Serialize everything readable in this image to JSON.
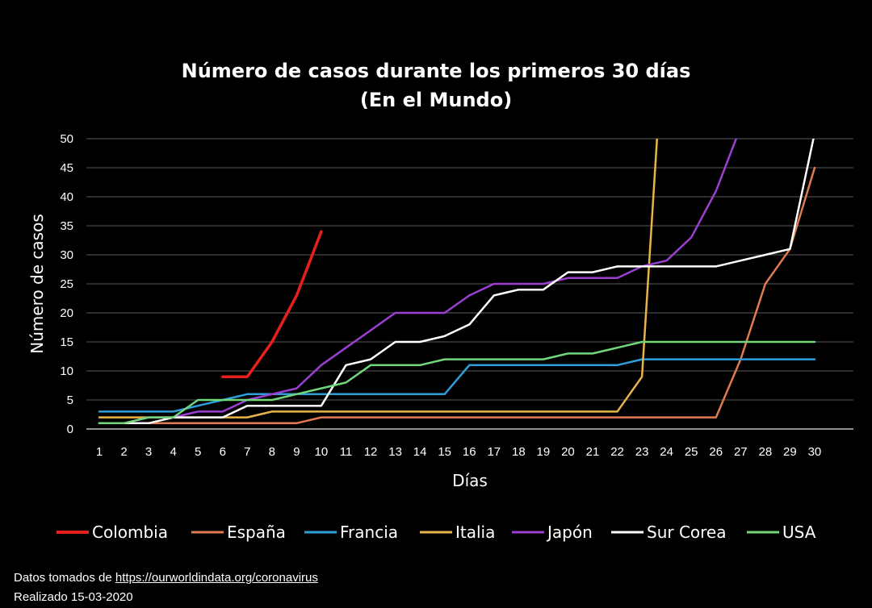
{
  "chart_data": {
    "type": "line",
    "title": "Número de casos durante los primeros 30 días",
    "subtitle": "(En el Mundo)",
    "xlabel": "Días",
    "ylabel": "Número de casos",
    "x": [
      1,
      2,
      3,
      4,
      5,
      6,
      7,
      8,
      9,
      10,
      11,
      12,
      13,
      14,
      15,
      16,
      17,
      18,
      19,
      20,
      21,
      22,
      23,
      24,
      25,
      26,
      27,
      28,
      29,
      30
    ],
    "xlim": [
      1,
      30
    ],
    "ylim": [
      0,
      50
    ],
    "yticks": [
      0,
      5,
      10,
      15,
      20,
      25,
      30,
      35,
      40,
      45,
      50
    ],
    "grid": true,
    "legend": "bottom",
    "series": [
      {
        "name": "Colombia",
        "color": "#e8201d",
        "values": [
          null,
          null,
          null,
          null,
          null,
          9,
          9,
          15,
          23,
          34,
          null,
          null,
          null,
          null,
          null,
          null,
          null,
          null,
          null,
          null,
          null,
          null,
          null,
          null,
          null,
          null,
          null,
          null,
          null,
          null
        ]
      },
      {
        "name": "España",
        "color": "#e07b4f",
        "values": [
          1,
          1,
          1,
          1,
          1,
          1,
          1,
          1,
          1,
          2,
          2,
          2,
          2,
          2,
          2,
          2,
          2,
          2,
          2,
          2,
          2,
          2,
          2,
          2,
          2,
          2,
          12,
          25,
          31,
          45
        ]
      },
      {
        "name": "Francia",
        "color": "#2e9fd8",
        "values": [
          3,
          3,
          3,
          3,
          4,
          5,
          6,
          6,
          6,
          6,
          6,
          6,
          6,
          6,
          6,
          11,
          11,
          11,
          11,
          11,
          11,
          11,
          12,
          12,
          12,
          12,
          12,
          12,
          12,
          12
        ]
      },
      {
        "name": "Italia",
        "color": "#e8b44a",
        "values": [
          2,
          2,
          2,
          2,
          2,
          2,
          2,
          3,
          3,
          3,
          3,
          3,
          3,
          3,
          3,
          3,
          3,
          3,
          3,
          3,
          3,
          3,
          9,
          76,
          null,
          null,
          null,
          null,
          null,
          null
        ]
      },
      {
        "name": "Japón",
        "color": "#9b3fd1",
        "values": [
          1,
          1,
          2,
          2,
          3,
          3,
          5,
          6,
          7,
          11,
          14,
          17,
          20,
          20,
          20,
          23,
          25,
          25,
          25,
          26,
          26,
          26,
          28,
          29,
          33,
          41,
          52,
          null,
          null,
          null
        ]
      },
      {
        "name": "Sur Corea",
        "color": "#ffffff",
        "values": [
          1,
          1,
          1,
          2,
          2,
          2,
          4,
          4,
          4,
          4,
          11,
          12,
          15,
          15,
          16,
          18,
          23,
          24,
          24,
          27,
          27,
          28,
          28,
          28,
          28,
          28,
          29,
          30,
          31,
          51
        ]
      },
      {
        "name": "USA",
        "color": "#72d67a",
        "values": [
          1,
          1,
          2,
          2,
          5,
          5,
          5,
          5,
          6,
          7,
          8,
          11,
          11,
          11,
          12,
          12,
          12,
          12,
          12,
          13,
          13,
          14,
          15,
          15,
          15,
          15,
          15,
          15,
          15,
          15
        ]
      }
    ]
  },
  "footer": {
    "source_prefix": "Datos tomados de ",
    "source_link": "https://ourworldindata.org/coronavirus",
    "date_line": "Realizado 15-03-2020"
  }
}
